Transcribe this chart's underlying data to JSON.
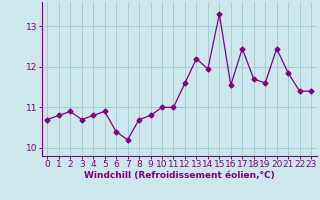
{
  "x": [
    0,
    1,
    2,
    3,
    4,
    5,
    6,
    7,
    8,
    9,
    10,
    11,
    12,
    13,
    14,
    15,
    16,
    17,
    18,
    19,
    20,
    21,
    22,
    23
  ],
  "y": [
    10.7,
    10.8,
    10.9,
    10.7,
    10.8,
    10.9,
    10.4,
    10.2,
    10.7,
    10.8,
    11.0,
    11.0,
    11.6,
    12.2,
    11.95,
    13.3,
    11.55,
    12.45,
    11.7,
    11.6,
    12.45,
    11.85,
    11.4,
    11.4
  ],
  "line_color": "#800080",
  "marker": "D",
  "markersize": 2.5,
  "linewidth": 0.9,
  "background_color": "#cce8ed",
  "grid_color": "#a0c8d0",
  "xlabel": "Windchill (Refroidissement éolien,°C)",
  "xlabel_fontsize": 6.5,
  "tick_fontsize": 6.5,
  "ylim": [
    9.8,
    13.6
  ],
  "xlim": [
    -0.5,
    23.5
  ],
  "yticks": [
    10,
    11,
    12,
    13
  ],
  "xticks": [
    0,
    1,
    2,
    3,
    4,
    5,
    6,
    7,
    8,
    9,
    10,
    11,
    12,
    13,
    14,
    15,
    16,
    17,
    18,
    19,
    20,
    21,
    22,
    23
  ]
}
